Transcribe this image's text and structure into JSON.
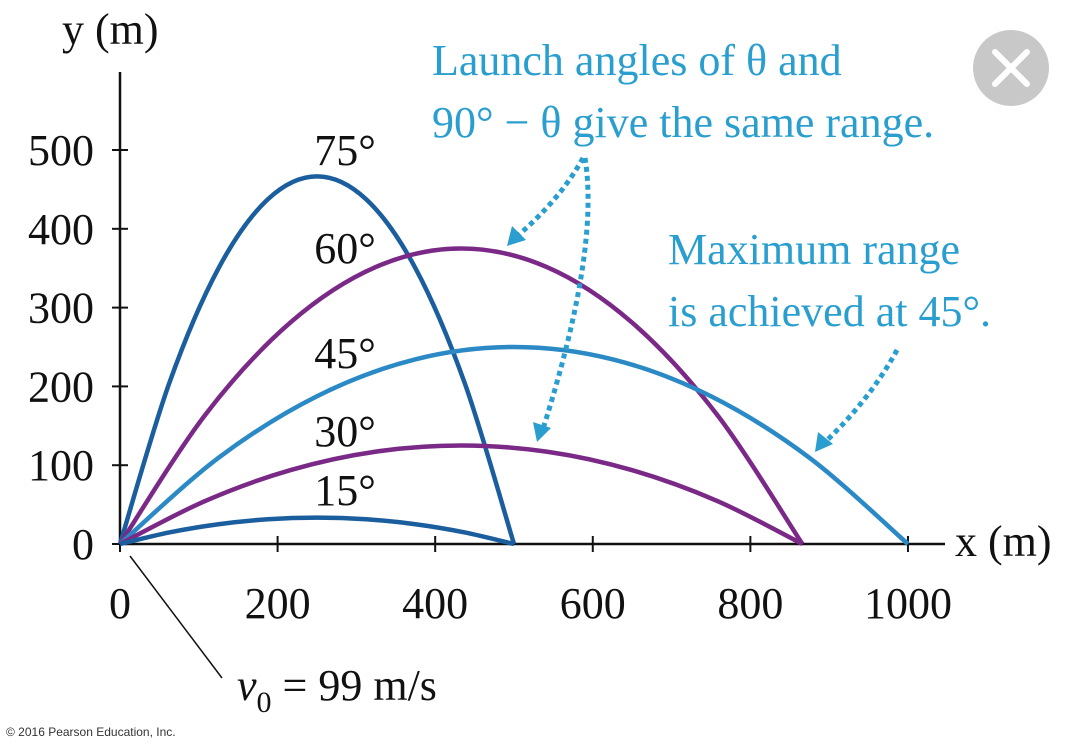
{
  "chart_data": {
    "type": "line",
    "xlabel": "x (m)",
    "ylabel": "y (m)",
    "xlim": [
      0,
      1047
    ],
    "ylim": [
      0,
      599
    ],
    "xticks": [
      0,
      200,
      400,
      600,
      800,
      1000
    ],
    "yticks": [
      0,
      100,
      200,
      300,
      400,
      500
    ],
    "series": [
      {
        "name": "75°",
        "color": "#1b5e9e",
        "x": [
          0,
          62.5,
          125,
          187.5,
          250,
          312.5,
          375,
          437.5,
          500
        ],
        "values": [
          0,
          204.1,
          349.9,
          437.4,
          466.6,
          437.4,
          349.9,
          204.1,
          0
        ]
      },
      {
        "name": "60°",
        "color": "#7a2a86",
        "x": [
          0,
          108.3,
          216.5,
          324.8,
          433,
          541.3,
          649.5,
          757.8,
          866
        ],
        "values": [
          0,
          164.1,
          281.3,
          351.6,
          375,
          351.6,
          281.3,
          164.1,
          0
        ]
      },
      {
        "name": "45°",
        "color": "#2b8ac6",
        "x": [
          0,
          125,
          250,
          375,
          500,
          625,
          750,
          875,
          1000
        ],
        "values": [
          0,
          109.4,
          187.5,
          234.4,
          250,
          234.4,
          187.5,
          109.4,
          0
        ]
      },
      {
        "name": "30°",
        "color": "#7a2a86",
        "x": [
          0,
          108.3,
          216.5,
          324.8,
          433,
          541.3,
          649.5,
          757.8,
          866
        ],
        "values": [
          0,
          54.7,
          93.8,
          117.2,
          125,
          117.2,
          93.8,
          54.7,
          0
        ]
      },
      {
        "name": "15°",
        "color": "#1b5e9e",
        "x": [
          0,
          62.5,
          125,
          187.5,
          250,
          312.5,
          375,
          437.5,
          500
        ],
        "values": [
          0,
          14.7,
          25.1,
          31.4,
          33.5,
          31.4,
          25.1,
          14.7,
          0
        ]
      }
    ],
    "annotations": [
      "Launch angles of θ and",
      "90° − θ give the same range.",
      "Maximum range",
      "is achieved at 45°."
    ],
    "v0_label": [
      "v",
      "0",
      " = 99 m/s"
    ],
    "copyright": "© 2016 Pearson Education, Inc."
  }
}
